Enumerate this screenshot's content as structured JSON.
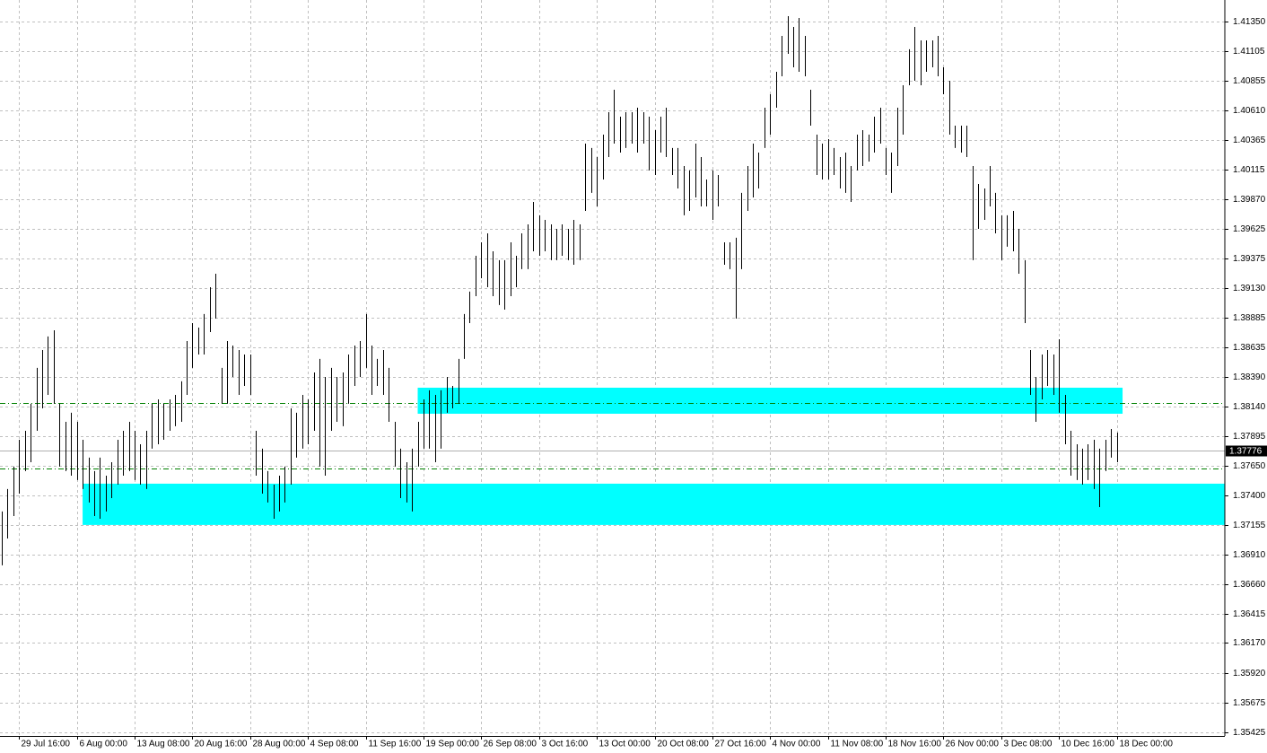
{
  "chart_data": {
    "type": "range",
    "xlim": [
      -0.3,
      211.7
    ],
    "ylim": [
      1.35395,
      1.4153
    ],
    "grid": true,
    "xticks": [
      {
        "value": 3,
        "label": "29 Jul 16:00"
      },
      {
        "value": 13,
        "label": "6 Aug 00:00"
      },
      {
        "value": 23,
        "label": "13 Aug 08:00"
      },
      {
        "value": 33,
        "label": "20 Aug 16:00"
      },
      {
        "value": 43,
        "label": "28 Aug 00:00"
      },
      {
        "value": 53,
        "label": "4 Sep 08:00"
      },
      {
        "value": 63,
        "label": "11 Sep 16:00"
      },
      {
        "value": 73,
        "label": "19 Sep 00:00"
      },
      {
        "value": 83,
        "label": "26 Sep 08:00"
      },
      {
        "value": 93,
        "label": "3 Oct 16:00"
      },
      {
        "value": 103,
        "label": "13 Oct 00:00"
      },
      {
        "value": 113,
        "label": "20 Oct 08:00"
      },
      {
        "value": 123,
        "label": "27 Oct 16:00"
      },
      {
        "value": 133,
        "label": "4 Nov 00:00"
      },
      {
        "value": 143,
        "label": "11 Nov 08:00"
      },
      {
        "value": 153,
        "label": "18 Nov 16:00"
      },
      {
        "value": 163,
        "label": "26 Nov 00:00"
      },
      {
        "value": 173,
        "label": "3 Dec 08:00"
      },
      {
        "value": 183,
        "label": "10 Dec 16:00"
      },
      {
        "value": 193,
        "label": "18 Dec 00:00"
      }
    ],
    "yticks": [
      {
        "value": 1.4135,
        "label": "1.41350"
      },
      1.41105,
      1.40855,
      {
        "value": 1.4061,
        "label": "1.40610"
      },
      1.40365,
      1.40115,
      {
        "value": 1.3987,
        "label": "1.39870"
      },
      1.39625,
      1.39375,
      {
        "value": 1.3913,
        "label": "1.39130"
      },
      1.38885,
      1.38635,
      {
        "value": 1.3839,
        "label": "1.38390"
      },
      {
        "value": 1.3814,
        "label": "1.38140"
      },
      1.37895,
      {
        "value": 1.3765,
        "label": "1.37650"
      },
      {
        "value": 1.374,
        "label": "1.37400"
      },
      1.37155,
      {
        "value": 1.3691,
        "label": "1.36910"
      },
      {
        "value": 1.3666,
        "label": "1.36660"
      },
      1.36415,
      {
        "value": 1.3617,
        "label": "1.36170"
      },
      {
        "value": 1.3592,
        "label": "1.35920"
      },
      1.35675,
      1.35425
    ],
    "zones": [
      {
        "color": "#00ffff",
        "x_range": [
          72,
          194
        ],
        "y_range": [
          1.38081,
          1.38298
        ]
      },
      {
        "color": "#00ffff",
        "x_range": [
          14,
          211.7
        ],
        "y_range": [
          1.37154,
          1.37498
        ]
      }
    ],
    "hlines": [
      {
        "value": 1.38171,
        "color": "#008000"
      },
      {
        "value": 1.37625,
        "color": "#008000"
      }
    ],
    "current_price": 1.37776,
    "series": [
      {
        "color": "#000000",
        "high": [
          1.37266,
          1.37453,
          1.3764,
          1.37864,
          1.37939,
          1.38164,
          1.38463,
          1.38612,
          1.38725,
          1.38777,
          1.38164,
          1.38014,
          1.38089,
          1.38014,
          1.37864,
          1.37715,
          1.37603,
          1.37715,
          1.37565,
          1.37677,
          1.37864,
          1.37939,
          1.38014,
          1.37939,
          1.37827,
          1.37939,
          1.38164,
          1.38201,
          1.38164,
          1.38201,
          1.38238,
          1.38351,
          1.38687,
          1.38837,
          1.38799,
          1.38912,
          1.39136,
          1.39248,
          1.38463,
          1.38687,
          1.3865,
          1.38612,
          1.38575,
          1.38575,
          1.37939,
          1.3779,
          1.37603,
          1.3749,
          1.37565,
          1.3764,
          1.38126,
          1.38089,
          1.38238,
          1.38201,
          1.38425,
          1.38538,
          1.38388,
          1.38463,
          1.38388,
          1.38425,
          1.38575,
          1.3865,
          1.38687,
          1.38912,
          1.3865,
          1.38538,
          1.38612,
          1.38463,
          1.38014,
          1.3779,
          1.37677,
          1.3779,
          1.38014,
          1.38201,
          1.38276,
          1.38238,
          1.38276,
          1.38388,
          1.38313,
          1.38538,
          1.38912,
          1.39099,
          1.39398,
          1.3951,
          1.39585,
          1.39435,
          1.39361,
          1.39361,
          1.3951,
          1.39398,
          1.39585,
          1.3966,
          1.39847,
          1.39735,
          1.39697,
          1.3966,
          1.39622,
          1.3966,
          1.39622,
          1.39697,
          1.3966,
          1.40333,
          1.40296,
          1.40221,
          1.40408,
          1.40595,
          1.40782,
          1.40557,
          1.40595,
          1.40595,
          1.40632,
          1.40595,
          1.40557,
          1.40445,
          1.40557,
          1.40632,
          1.40296,
          1.40296,
          1.40146,
          1.40109,
          1.40333,
          1.40221,
          1.40034,
          1.40109,
          1.40071,
          1.3951,
          1.3951,
          1.39548,
          1.39922,
          1.40146,
          1.40333,
          1.40258,
          1.40632,
          1.40744,
          1.40931,
          1.41231,
          1.41395,
          1.41306,
          1.4138,
          1.41231,
          1.40782,
          1.40408,
          1.40333,
          1.4037,
          1.40296,
          1.40221,
          1.40258,
          1.40146,
          1.40408,
          1.40445,
          1.40408,
          1.40557,
          1.40632,
          1.40296,
          1.40258,
          1.40632,
          1.40819,
          1.41119,
          1.41306,
          1.41193,
          1.41193,
          1.41193,
          1.41231,
          1.40969,
          1.40857,
          1.40483,
          1.40483,
          1.40483,
          1.40146,
          1.39996,
          1.39959,
          1.40146,
          1.39922,
          1.39735,
          1.39735,
          1.39772,
          1.39622,
          1.39361,
          1.38612,
          1.38388,
          1.38575,
          1.38612,
          1.38575,
          1.38702,
          1.38238,
          1.37939,
          1.37827,
          1.3779,
          1.37827,
          1.37864,
          1.3779,
          1.37864,
          1.37954,
          1.37924
        ],
        "low": [
          1.36817,
          1.37041,
          1.37228,
          1.37415,
          1.37603,
          1.37677,
          1.37939,
          1.38126,
          1.38238,
          1.38164,
          1.3764,
          1.37603,
          1.37565,
          1.37528,
          1.37453,
          1.37341,
          1.37228,
          1.37206,
          1.37266,
          1.37378,
          1.3749,
          1.37565,
          1.37603,
          1.37528,
          1.3749,
          1.37453,
          1.3779,
          1.37827,
          1.37864,
          1.37939,
          1.37977,
          1.38014,
          1.38238,
          1.38463,
          1.38575,
          1.38575,
          1.38762,
          1.38874,
          1.38164,
          1.38164,
          1.38388,
          1.38238,
          1.38313,
          1.38238,
          1.37565,
          1.37415,
          1.37341,
          1.37206,
          1.37266,
          1.37341,
          1.3749,
          1.37715,
          1.3779,
          1.37827,
          1.37939,
          1.3764,
          1.37565,
          1.37939,
          1.38014,
          1.37977,
          1.38164,
          1.38313,
          1.38388,
          1.38463,
          1.38238,
          1.38313,
          1.38238,
          1.38014,
          1.3764,
          1.37378,
          1.37341,
          1.37266,
          1.3764,
          1.3779,
          1.3779,
          1.37677,
          1.3779,
          1.38089,
          1.38126,
          1.38164,
          1.38538,
          1.38837,
          1.39061,
          1.39211,
          1.39136,
          1.39061,
          1.38987,
          1.38949,
          1.39061,
          1.39136,
          1.39286,
          1.39286,
          1.39435,
          1.39398,
          1.39435,
          1.39361,
          1.39361,
          1.39398,
          1.39361,
          1.39323,
          1.39361,
          1.39772,
          1.39922,
          1.39809,
          1.40034,
          1.40221,
          1.40333,
          1.40258,
          1.40296,
          1.40333,
          1.40258,
          1.40333,
          1.40109,
          1.40071,
          1.40258,
          1.40221,
          1.40071,
          1.39959,
          1.39735,
          1.39772,
          1.39884,
          1.39809,
          1.39809,
          1.39697,
          1.39809,
          1.39323,
          1.39286,
          1.38874,
          1.39286,
          1.39772,
          1.39884,
          1.39959,
          1.40296,
          1.40408,
          1.40632,
          1.40894,
          1.41081,
          1.40969,
          1.40931,
          1.40894,
          1.40483,
          1.40071,
          1.40034,
          1.40034,
          1.40071,
          1.39959,
          1.39922,
          1.39847,
          1.40109,
          1.40146,
          1.40183,
          1.40258,
          1.40333,
          1.40071,
          1.39922,
          1.40146,
          1.40408,
          1.40819,
          1.40857,
          1.40819,
          1.40931,
          1.40969,
          1.40894,
          1.40744,
          1.40408,
          1.40296,
          1.40258,
          1.40221,
          1.39361,
          1.39622,
          1.39697,
          1.39809,
          1.39585,
          1.39361,
          1.39473,
          1.39435,
          1.39248,
          1.38837,
          1.38238,
          1.38014,
          1.38201,
          1.38313,
          1.38238,
          1.38089,
          1.37827,
          1.37565,
          1.37528,
          1.3749,
          1.37528,
          1.37453,
          1.37303,
          1.37603,
          1.37715,
          1.37677
        ]
      }
    ]
  }
}
